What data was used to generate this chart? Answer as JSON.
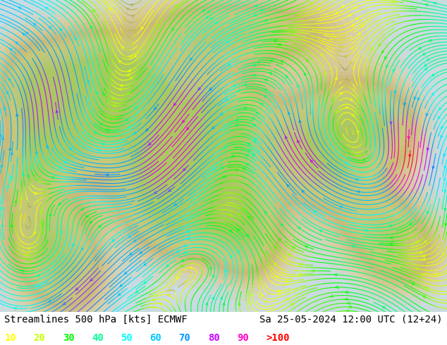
{
  "title_left": "Streamlines 500 hPa [kts] ECMWF",
  "title_right": "Sa 25-05-2024 12:00 UTC (12+24)",
  "legend_values": [
    "10",
    "20",
    "30",
    "40",
    "50",
    "60",
    "70",
    "80",
    "90",
    ">100"
  ],
  "legend_colors": [
    "#ffff00",
    "#c8ff00",
    "#00ff00",
    "#00ff96",
    "#00ffff",
    "#00c8ff",
    "#0096ff",
    "#c800ff",
    "#ff00c8",
    "#ff0000"
  ],
  "bg_color": "#c8dce8",
  "land_color": "#d4c896",
  "text_color": "#000000",
  "title_fontsize": 10,
  "legend_fontsize": 10,
  "figsize": [
    6.34,
    4.9
  ],
  "dpi": 100,
  "stream_density": 3.5,
  "stream_linewidth": 0.8,
  "stream_arrowsize": 0.6,
  "speed_max": 110
}
